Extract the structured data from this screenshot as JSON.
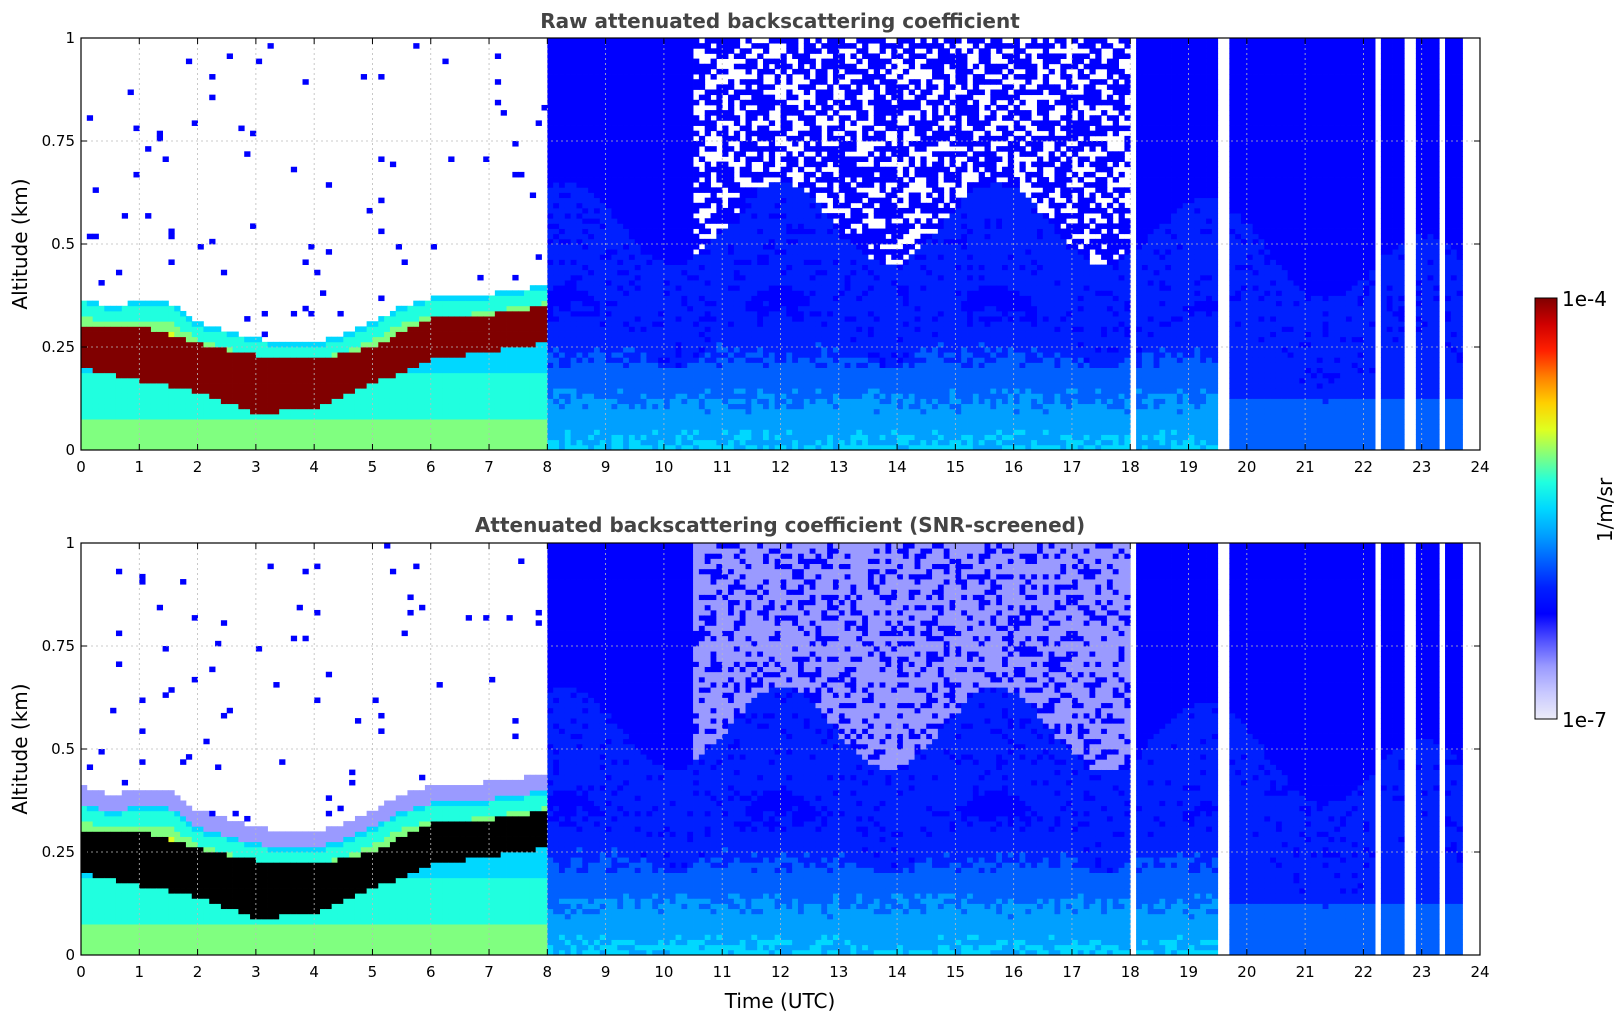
{
  "chart_data": [
    {
      "type": "heatmap",
      "title": "Raw attenuated backscattering coefficient",
      "xlabel": "",
      "ylabel": "Altitude (km)",
      "xlim": [
        0,
        24
      ],
      "ylim": [
        0,
        1
      ],
      "x_ticks": [
        "0",
        "1",
        "2",
        "3",
        "4",
        "5",
        "6",
        "7",
        "8",
        "9",
        "10",
        "11",
        "12",
        "13",
        "14",
        "15",
        "16",
        "17",
        "18",
        "19",
        "20",
        "21",
        "22",
        "23",
        "24"
      ],
      "y_ticks": [
        "0",
        "0.25",
        "0.5",
        "0.75",
        "1"
      ],
      "grid": true,
      "colormap": "jet",
      "screened": false,
      "layer_top_km": [
        [
          0,
          0.35
        ],
        [
          0.5,
          0.33
        ],
        [
          1,
          0.34
        ],
        [
          1.5,
          0.34
        ],
        [
          2,
          0.29
        ],
        [
          2.5,
          0.27
        ],
        [
          3,
          0.25
        ],
        [
          3.5,
          0.24
        ],
        [
          4,
          0.24
        ],
        [
          4.5,
          0.26
        ],
        [
          5,
          0.29
        ],
        [
          5.5,
          0.33
        ],
        [
          6,
          0.35
        ],
        [
          6.5,
          0.35
        ],
        [
          7,
          0.36
        ],
        [
          7.5,
          0.37
        ],
        [
          8,
          0.38
        ]
      ],
      "dense_layer_km": [
        [
          0,
          0.2,
          0.3
        ],
        [
          1,
          0.17,
          0.3
        ],
        [
          2,
          0.14,
          0.26
        ],
        [
          3,
          0.09,
          0.23
        ],
        [
          4,
          0.1,
          0.22
        ],
        [
          5,
          0.16,
          0.25
        ],
        [
          6,
          0.22,
          0.32
        ],
        [
          7,
          0.24,
          0.33
        ],
        [
          8,
          0.26,
          0.35
        ]
      ],
      "data_gaps_utc": [
        [
          0.38,
          0.41
        ],
        [
          0.98,
          1.03
        ],
        [
          8.18,
          8.21
        ],
        [
          18.0,
          18.05
        ],
        [
          19.53,
          19.68
        ],
        [
          22.24,
          22.32
        ],
        [
          22.74,
          22.86
        ],
        [
          23.3,
          23.42
        ],
        [
          23.7,
          24.0
        ]
      ]
    },
    {
      "type": "heatmap",
      "title": "Attenuated backscattering coefficient (SNR-screened)",
      "xlabel": "Time (UTC)",
      "ylabel": "Altitude (km)",
      "xlim": [
        0,
        24
      ],
      "ylim": [
        0,
        1
      ],
      "x_ticks": [
        "0",
        "1",
        "2",
        "3",
        "4",
        "5",
        "6",
        "7",
        "8",
        "9",
        "10",
        "11",
        "12",
        "13",
        "14",
        "15",
        "16",
        "17",
        "18",
        "19",
        "20",
        "21",
        "22",
        "23",
        "24"
      ],
      "y_ticks": [
        "0",
        "0.25",
        "0.5",
        "0.75",
        "1"
      ],
      "grid": true,
      "colormap": "jet",
      "screened": true,
      "layer_top_km": [
        [
          0,
          0.35
        ],
        [
          0.5,
          0.33
        ],
        [
          1,
          0.34
        ],
        [
          1.5,
          0.34
        ],
        [
          2,
          0.29
        ],
        [
          2.5,
          0.27
        ],
        [
          3,
          0.25
        ],
        [
          3.5,
          0.24
        ],
        [
          4,
          0.24
        ],
        [
          4.5,
          0.26
        ],
        [
          5,
          0.29
        ],
        [
          5.5,
          0.33
        ],
        [
          6,
          0.35
        ],
        [
          6.5,
          0.35
        ],
        [
          7,
          0.36
        ],
        [
          7.5,
          0.37
        ],
        [
          8,
          0.38
        ]
      ],
      "dense_layer_km": [
        [
          0,
          0.2,
          0.3
        ],
        [
          1,
          0.17,
          0.3
        ],
        [
          2,
          0.14,
          0.26
        ],
        [
          3,
          0.09,
          0.23
        ],
        [
          4,
          0.1,
          0.22
        ],
        [
          5,
          0.16,
          0.25
        ],
        [
          6,
          0.22,
          0.32
        ],
        [
          7,
          0.24,
          0.33
        ],
        [
          8,
          0.26,
          0.35
        ]
      ],
      "data_gaps_utc": [
        [
          0.38,
          0.41
        ],
        [
          0.98,
          1.03
        ],
        [
          8.18,
          8.21
        ],
        [
          18.0,
          18.05
        ],
        [
          19.53,
          19.68
        ],
        [
          22.24,
          22.32
        ],
        [
          22.74,
          22.86
        ],
        [
          23.3,
          23.42
        ],
        [
          23.7,
          24.0
        ]
      ]
    }
  ],
  "colorbar": {
    "label": "1/m/sr",
    "max_label": "1e-4",
    "min_label": "1e-7",
    "scale": "log",
    "range": [
      1e-07,
      0.0001
    ],
    "colors": [
      "#ececf8",
      "#c8c8ff",
      "#9a9aff",
      "#5050ff",
      "#0000ff",
      "#0020ff",
      "#0060ff",
      "#00a0ff",
      "#00d8ff",
      "#20ffdf",
      "#80ff80",
      "#dfff20",
      "#ffd000",
      "#ff8000",
      "#ff2000",
      "#d00000",
      "#800000"
    ]
  }
}
